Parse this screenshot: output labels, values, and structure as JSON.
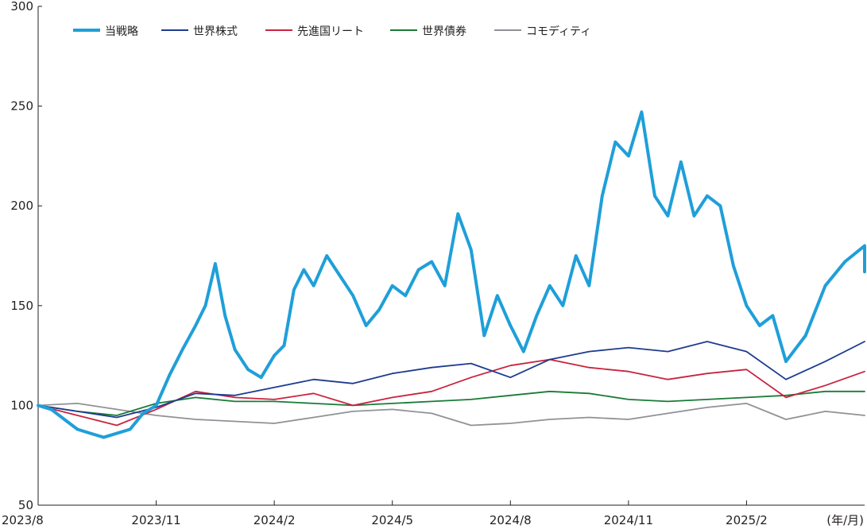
{
  "chart_data": {
    "type": "line",
    "title": "",
    "xlabel": "",
    "ylabel": "",
    "x_unit_label": "(年/月)",
    "x_tick_labels": [
      "2023/8",
      "2023/11",
      "2024/2",
      "2024/5",
      "2024/8",
      "2024/11",
      "2025/2"
    ],
    "x_range": [
      "2023/8",
      "2025/5"
    ],
    "y_ticks": [
      50,
      100,
      150,
      200,
      250,
      300
    ],
    "ylim": [
      50,
      300
    ],
    "grid": false,
    "legend_position": "top-left",
    "series": [
      {
        "name": "当戦略",
        "color": "#1f9fd9",
        "points": [
          [
            "2023/8",
            100
          ],
          [
            "2023/8",
            98
          ],
          [
            "2023/8",
            93
          ],
          [
            "2023/9",
            88
          ],
          [
            "2023/9",
            86
          ],
          [
            "2023/9",
            84
          ],
          [
            "2023/10",
            86
          ],
          [
            "2023/10",
            88
          ],
          [
            "2023/10",
            96
          ],
          [
            "2023/11",
            100
          ],
          [
            "2023/11",
            115
          ],
          [
            "2023/11",
            128
          ],
          [
            "2023/12",
            140
          ],
          [
            "2023/12",
            150
          ],
          [
            "2023/12",
            171
          ],
          [
            "2023/12",
            145
          ],
          [
            "2024/1",
            128
          ],
          [
            "2024/1",
            118
          ],
          [
            "2024/1",
            114
          ],
          [
            "2024/2",
            125
          ],
          [
            "2024/2",
            130
          ],
          [
            "2024/2",
            158
          ],
          [
            "2024/2",
            168
          ],
          [
            "2024/3",
            160
          ],
          [
            "2024/3",
            175
          ],
          [
            "2024/3",
            165
          ],
          [
            "2024/4",
            155
          ],
          [
            "2024/4",
            140
          ],
          [
            "2024/4",
            148
          ],
          [
            "2024/5",
            160
          ],
          [
            "2024/5",
            155
          ],
          [
            "2024/5",
            168
          ],
          [
            "2024/6",
            172
          ],
          [
            "2024/6",
            160
          ],
          [
            "2024/6",
            196
          ],
          [
            "2024/7",
            178
          ],
          [
            "2024/7",
            135
          ],
          [
            "2024/7",
            155
          ],
          [
            "2024/8",
            140
          ],
          [
            "2024/8",
            127
          ],
          [
            "2024/8",
            145
          ],
          [
            "2024/9",
            160
          ],
          [
            "2024/9",
            150
          ],
          [
            "2024/9",
            175
          ],
          [
            "2024/10",
            160
          ],
          [
            "2024/10",
            205
          ],
          [
            "2024/10",
            232
          ],
          [
            "2024/11",
            225
          ],
          [
            "2024/11",
            247
          ],
          [
            "2024/11",
            205
          ],
          [
            "2024/12",
            195
          ],
          [
            "2024/12",
            222
          ],
          [
            "2024/12",
            195
          ],
          [
            "2025/1",
            205
          ],
          [
            "2025/1",
            200
          ],
          [
            "2025/1",
            170
          ],
          [
            "2025/2",
            150
          ],
          [
            "2025/2",
            140
          ],
          [
            "2025/2",
            145
          ],
          [
            "2025/3",
            122
          ],
          [
            "2025/3",
            135
          ],
          [
            "2025/4",
            160
          ],
          [
            "2025/4",
            172
          ],
          [
            "2025/5",
            180
          ],
          [
            "2025/5",
            167
          ]
        ]
      },
      {
        "name": "世界株式",
        "color": "#1d3c8f",
        "points": [
          [
            "2023/8",
            100
          ],
          [
            "2023/9",
            97
          ],
          [
            "2023/10",
            94
          ],
          [
            "2023/11",
            99
          ],
          [
            "2023/12",
            106
          ],
          [
            "2024/1",
            105
          ],
          [
            "2024/2",
            109
          ],
          [
            "2024/3",
            113
          ],
          [
            "2024/4",
            111
          ],
          [
            "2024/5",
            116
          ],
          [
            "2024/6",
            119
          ],
          [
            "2024/7",
            121
          ],
          [
            "2024/8",
            114
          ],
          [
            "2024/9",
            123
          ],
          [
            "2024/10",
            127
          ],
          [
            "2024/11",
            129
          ],
          [
            "2024/12",
            127
          ],
          [
            "2025/1",
            132
          ],
          [
            "2025/2",
            127
          ],
          [
            "2025/3",
            113
          ],
          [
            "2025/4",
            122
          ],
          [
            "2025/5",
            132
          ]
        ]
      },
      {
        "name": "先進国リート",
        "color": "#c8243f",
        "points": [
          [
            "2023/8",
            100
          ],
          [
            "2023/9",
            95
          ],
          [
            "2023/10",
            90
          ],
          [
            "2023/11",
            98
          ],
          [
            "2023/12",
            107
          ],
          [
            "2024/1",
            104
          ],
          [
            "2024/2",
            103
          ],
          [
            "2024/3",
            106
          ],
          [
            "2024/4",
            100
          ],
          [
            "2024/5",
            104
          ],
          [
            "2024/6",
            107
          ],
          [
            "2024/7",
            114
          ],
          [
            "2024/8",
            120
          ],
          [
            "2024/9",
            123
          ],
          [
            "2024/10",
            119
          ],
          [
            "2024/11",
            117
          ],
          [
            "2024/12",
            113
          ],
          [
            "2025/1",
            116
          ],
          [
            "2025/2",
            118
          ],
          [
            "2025/3",
            104
          ],
          [
            "2025/4",
            110
          ],
          [
            "2025/5",
            117
          ]
        ]
      },
      {
        "name": "世界債券",
        "color": "#1a7a36",
        "points": [
          [
            "2023/8",
            100
          ],
          [
            "2023/9",
            97
          ],
          [
            "2023/10",
            95
          ],
          [
            "2023/11",
            101
          ],
          [
            "2023/12",
            104
          ],
          [
            "2024/1",
            102
          ],
          [
            "2024/2",
            102
          ],
          [
            "2024/3",
            101
          ],
          [
            "2024/4",
            100
          ],
          [
            "2024/5",
            101
          ],
          [
            "2024/6",
            102
          ],
          [
            "2024/7",
            103
          ],
          [
            "2024/8",
            105
          ],
          [
            "2024/9",
            107
          ],
          [
            "2024/10",
            106
          ],
          [
            "2024/11",
            103
          ],
          [
            "2024/12",
            102
          ],
          [
            "2025/1",
            103
          ],
          [
            "2025/2",
            104
          ],
          [
            "2025/3",
            105
          ],
          [
            "2025/4",
            107
          ],
          [
            "2025/5",
            107
          ]
        ]
      },
      {
        "name": "コモディティ",
        "color": "#8f9296",
        "points": [
          [
            "2023/8",
            100
          ],
          [
            "2023/9",
            101
          ],
          [
            "2023/10",
            98
          ],
          [
            "2023/11",
            95
          ],
          [
            "2023/12",
            93
          ],
          [
            "2024/1",
            92
          ],
          [
            "2024/2",
            91
          ],
          [
            "2024/3",
            94
          ],
          [
            "2024/4",
            97
          ],
          [
            "2024/5",
            98
          ],
          [
            "2024/6",
            96
          ],
          [
            "2024/7",
            90
          ],
          [
            "2024/8",
            91
          ],
          [
            "2024/9",
            93
          ],
          [
            "2024/10",
            94
          ],
          [
            "2024/11",
            93
          ],
          [
            "2024/12",
            96
          ],
          [
            "2025/1",
            99
          ],
          [
            "2025/2",
            101
          ],
          [
            "2025/3",
            93
          ],
          [
            "2025/4",
            97
          ],
          [
            "2025/5",
            95
          ]
        ]
      }
    ]
  }
}
